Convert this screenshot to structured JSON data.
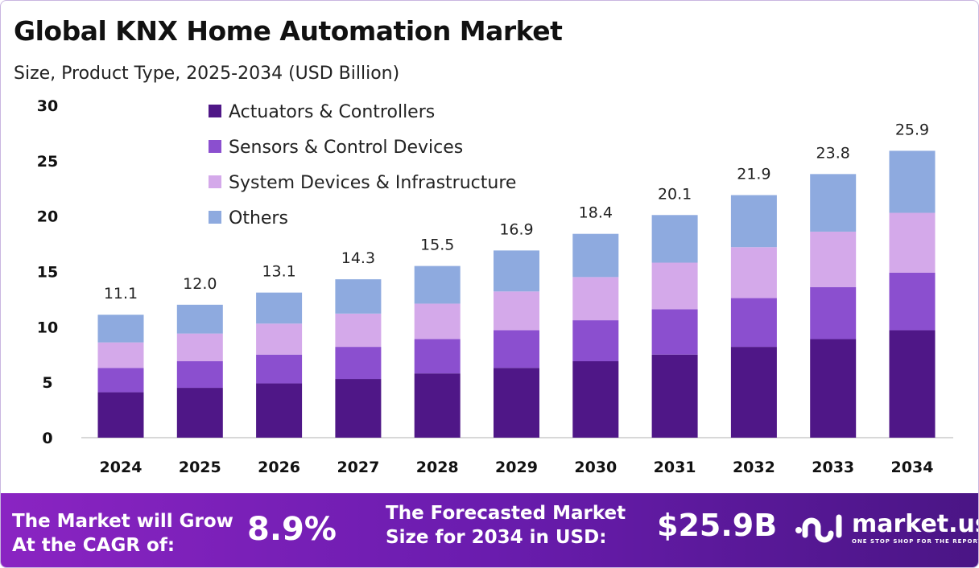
{
  "chart_data": {
    "type": "bar",
    "stacked": true,
    "title": "Global KNX Home Automation Market",
    "subtitle": "Size, Product Type, 2025-2034 (USD Billion)",
    "categories": [
      "2024",
      "2025",
      "2026",
      "2027",
      "2028",
      "2029",
      "2030",
      "2031",
      "2032",
      "2033",
      "2034"
    ],
    "totals": [
      "11.1",
      "12.0",
      "13.1",
      "14.3",
      "15.5",
      "16.9",
      "18.4",
      "20.1",
      "21.9",
      "23.8",
      "25.9"
    ],
    "series": [
      {
        "name": "Actuators & Controllers",
        "color": "#4f1787",
        "values": [
          4.1,
          4.5,
          4.9,
          5.3,
          5.8,
          6.3,
          6.9,
          7.5,
          8.2,
          8.9,
          9.7
        ]
      },
      {
        "name": "Sensors & Control Devices",
        "color": "#8b4fcf",
        "values": [
          2.2,
          2.4,
          2.6,
          2.9,
          3.1,
          3.4,
          3.7,
          4.1,
          4.4,
          4.7,
          5.2
        ]
      },
      {
        "name": "System Devices & Infrastructure",
        "color": "#d4a9ea",
        "values": [
          2.3,
          2.5,
          2.8,
          3.0,
          3.2,
          3.5,
          3.9,
          4.2,
          4.6,
          5.0,
          5.4
        ]
      },
      {
        "name": "Others",
        "color": "#8eaadf",
        "values": [
          2.5,
          2.6,
          2.8,
          3.1,
          3.4,
          3.7,
          3.9,
          4.3,
          4.7,
          5.2,
          5.6
        ]
      }
    ],
    "yticks": [
      "0",
      "5",
      "10",
      "15",
      "20",
      "25",
      "30"
    ],
    "ylim": [
      0,
      30
    ],
    "grid": false,
    "legend": "top-left"
  },
  "footer": {
    "cagr_label": [
      "The Market will Grow",
      "At the CAGR of:"
    ],
    "cagr_value": "8.9%",
    "forecast_label": [
      "The Forecasted Market",
      "Size for 2034 in USD:"
    ],
    "forecast_value": "$25.9B",
    "logo_text": "market.us",
    "logo_tagline": "ONE STOP SHOP FOR THE REPORTS"
  }
}
